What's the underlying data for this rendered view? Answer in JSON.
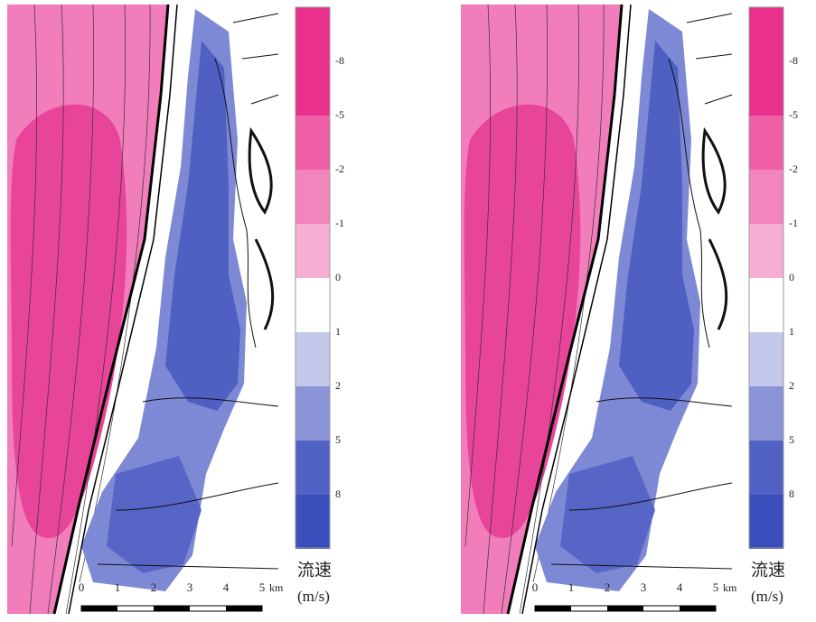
{
  "panels": [
    {
      "legend": {
        "labels": [
          -8,
          -5,
          -2,
          -1,
          0,
          1,
          2,
          5,
          8
        ],
        "colors": [
          "#e8308c",
          "#e8308c",
          "#ee5fa5",
          "#f285bb",
          "#f6afd2",
          "#ffffff",
          "#c4c8ea",
          "#8a93d6",
          "#5262c4",
          "#3a4fbb"
        ],
        "title": "流速",
        "unit": "(m/s)"
      },
      "scale": {
        "ticks": [
          0,
          1,
          2,
          3,
          4,
          5
        ],
        "unit": "km"
      }
    },
    {
      "legend": {
        "labels": [
          -8,
          -5,
          -2,
          -1,
          0,
          1,
          2,
          5,
          8
        ],
        "colors": [
          "#e8308c",
          "#e8308c",
          "#ee5fa5",
          "#f285bb",
          "#f6afd2",
          "#ffffff",
          "#c4c8ea",
          "#8a93d6",
          "#5262c4",
          "#3a4fbb"
        ],
        "title": "流速",
        "unit": "(m/s)"
      },
      "scale": {
        "ticks": [
          0,
          1,
          2,
          3,
          4,
          5
        ],
        "unit": "km"
      }
    }
  ]
}
